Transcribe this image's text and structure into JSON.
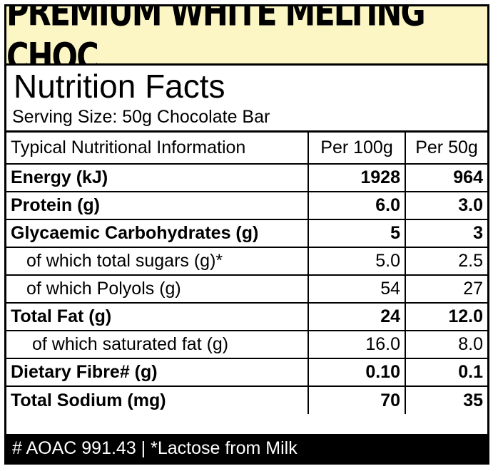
{
  "product_name": "PREMIUM WHITE MELTING CHOC",
  "title": "Nutrition Facts",
  "serving_size": "Serving Size: 50g Chocolate Bar",
  "table": {
    "headers": [
      "Typical Nutritional Information",
      "Per 100g",
      "Per 50g"
    ],
    "rows": [
      {
        "name": "Energy (kJ)",
        "per100": "1928",
        "per50": "964"
      },
      {
        "name": "Protein (g)",
        "per100": "6.0",
        "per50": "3.0"
      },
      {
        "name": "Glycaemic Carbohydrates (g)",
        "per100": "5",
        "per50": "3"
      },
      {
        "name": "of which total sugars (g)*",
        "per100": "5.0",
        "per50": "2.5"
      },
      {
        "name": "of which Polyols (g)",
        "per100": "54",
        "per50": "27"
      },
      {
        "name": "Total Fat (g)",
        "per100": "24",
        "per50": "12.0"
      },
      {
        "name": "of which saturated fat (g)",
        "per100": "16.0",
        "per50": "8.0"
      },
      {
        "name": "Dietary Fibre# (g)",
        "per100": "0.10",
        "per50": "0.1"
      },
      {
        "name": "Total Sodium (mg)",
        "per100": "70",
        "per50": "35"
      }
    ]
  },
  "footer": "# AOAC 991.43  |  *Lactose from Milk",
  "colors": {
    "banner_bg": "#fcf6c4",
    "footer_bg": "#000000",
    "text": "#000000"
  }
}
